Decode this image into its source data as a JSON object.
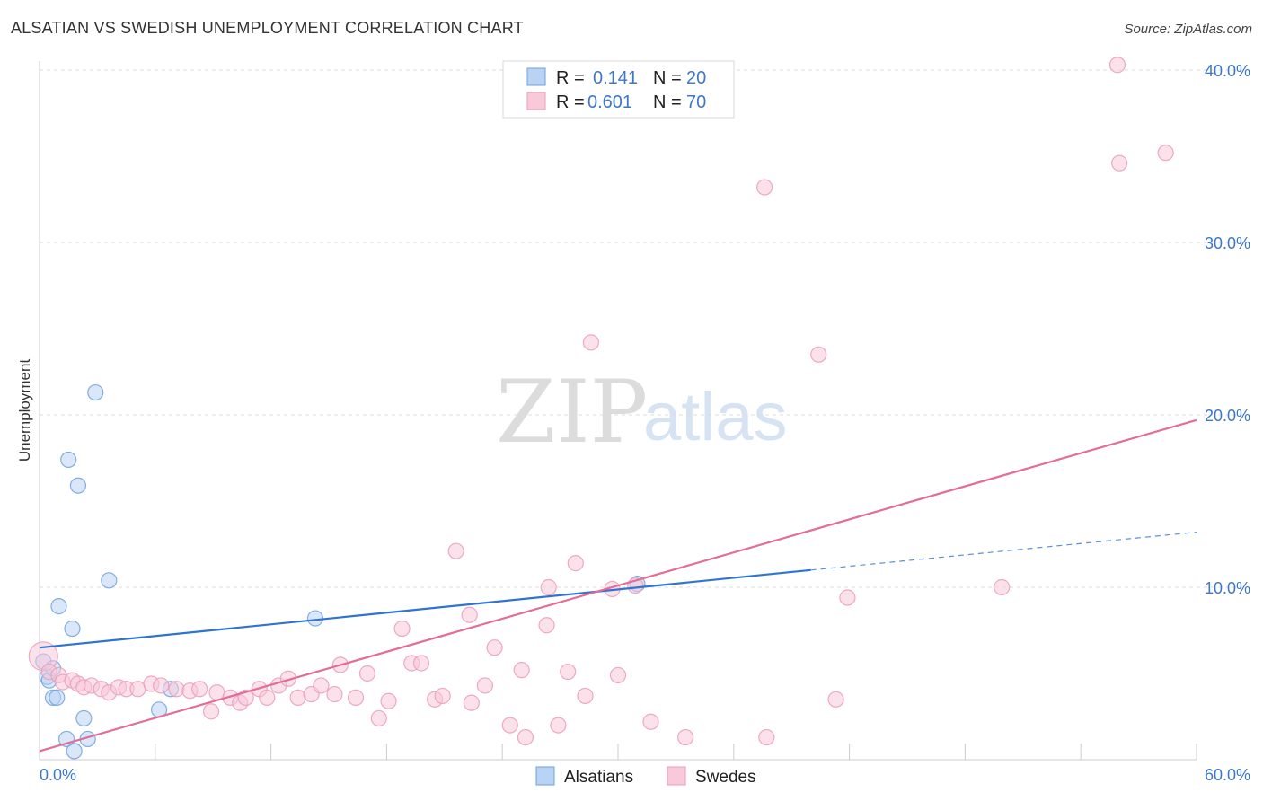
{
  "title": "ALSATIAN VS SWEDISH UNEMPLOYMENT CORRELATION CHART",
  "source": "Source: ZipAtlas.com",
  "watermark": {
    "zip": "ZIP",
    "atlas": "atlas"
  },
  "colors": {
    "blue": "#6fa1de",
    "blue_fill": "#b9d3f4",
    "blue_line": "#2f74cf",
    "pink": "#ec9bb6",
    "pink_fill": "#f8c9d8",
    "pink_line": "#e36d97",
    "tick_text": "#3d78c8",
    "grid": "#dddddd"
  },
  "legend_stats": [
    {
      "r_label": "R =",
      "r_value": "0.141",
      "n_label": "N =",
      "n_value": "20",
      "color_key": "blue"
    },
    {
      "r_label": "R =",
      "r_value": "0.601",
      "n_label": "N =",
      "n_value": "70",
      "color_key": "pink"
    }
  ],
  "chart_data": {
    "type": "scatter",
    "title": "ALSATIAN VS SWEDISH UNEMPLOYMENT CORRELATION CHART",
    "xlabel": "",
    "ylabel": "Unemployment",
    "xlim": [
      0,
      60
    ],
    "ylim": [
      0,
      40
    ],
    "x_tick_labels": [
      "0.0%",
      "60.0%"
    ],
    "y_ticks": [
      10,
      20,
      30,
      40
    ],
    "y_tick_labels": [
      "10.0%",
      "20.0%",
      "30.0%",
      "40.0%"
    ],
    "grid": "horizontal dashed",
    "legend_position": "top-center and bottom-center",
    "series": [
      {
        "name": "Alsatians",
        "color": "#6fa1de",
        "r": 0.141,
        "n": 20,
        "points": [
          [
            0.2,
            5.7
          ],
          [
            0.4,
            4.8
          ],
          [
            0.5,
            4.6
          ],
          [
            0.7,
            5.3
          ],
          [
            0.7,
            3.6
          ],
          [
            0.9,
            3.6
          ],
          [
            1.0,
            8.9
          ],
          [
            1.4,
            1.2
          ],
          [
            1.5,
            17.4
          ],
          [
            1.7,
            7.6
          ],
          [
            1.8,
            0.5
          ],
          [
            2.0,
            15.9
          ],
          [
            2.3,
            2.4
          ],
          [
            2.5,
            1.2
          ],
          [
            2.9,
            21.3
          ],
          [
            3.6,
            10.4
          ],
          [
            6.2,
            2.9
          ],
          [
            6.8,
            4.1
          ],
          [
            14.3,
            8.2
          ],
          [
            31.0,
            10.2
          ]
        ],
        "trend": {
          "x_start": 0,
          "y_start": 6.5,
          "x_solid_end": 40,
          "y_solid_end": 11.0,
          "x_end": 60,
          "y_end": 13.2
        }
      },
      {
        "name": "Swedes",
        "color": "#ec9bb6",
        "r": 0.601,
        "n": 70,
        "points": [
          [
            0.2,
            6.0
          ],
          [
            0.5,
            5.1
          ],
          [
            1.0,
            4.9
          ],
          [
            1.2,
            4.5
          ],
          [
            1.7,
            4.6
          ],
          [
            2.0,
            4.4
          ],
          [
            2.3,
            4.2
          ],
          [
            2.7,
            4.3
          ],
          [
            3.2,
            4.1
          ],
          [
            3.6,
            3.9
          ],
          [
            4.1,
            4.2
          ],
          [
            4.5,
            4.1
          ],
          [
            5.1,
            4.1
          ],
          [
            5.8,
            4.4
          ],
          [
            6.3,
            4.3
          ],
          [
            7.1,
            4.1
          ],
          [
            7.8,
            4.0
          ],
          [
            8.3,
            4.1
          ],
          [
            8.9,
            2.8
          ],
          [
            9.2,
            3.9
          ],
          [
            9.9,
            3.6
          ],
          [
            10.4,
            3.3
          ],
          [
            10.7,
            3.6
          ],
          [
            11.4,
            4.1
          ],
          [
            11.8,
            3.6
          ],
          [
            12.4,
            4.3
          ],
          [
            12.9,
            4.7
          ],
          [
            13.4,
            3.6
          ],
          [
            14.1,
            3.8
          ],
          [
            14.6,
            4.3
          ],
          [
            15.3,
            3.8
          ],
          [
            15.6,
            5.5
          ],
          [
            16.4,
            3.6
          ],
          [
            17.0,
            5.0
          ],
          [
            17.6,
            2.4
          ],
          [
            18.1,
            3.4
          ],
          [
            18.8,
            7.6
          ],
          [
            19.3,
            5.6
          ],
          [
            19.8,
            5.6
          ],
          [
            20.5,
            3.5
          ],
          [
            20.9,
            3.7
          ],
          [
            21.6,
            12.1
          ],
          [
            22.3,
            8.4
          ],
          [
            22.4,
            3.3
          ],
          [
            23.1,
            4.3
          ],
          [
            23.6,
            6.5
          ],
          [
            24.4,
            2.0
          ],
          [
            25.0,
            5.2
          ],
          [
            25.2,
            1.3
          ],
          [
            26.3,
            7.8
          ],
          [
            26.4,
            10.0
          ],
          [
            26.9,
            2.0
          ],
          [
            27.4,
            5.1
          ],
          [
            27.8,
            11.4
          ],
          [
            28.3,
            3.7
          ],
          [
            28.6,
            24.2
          ],
          [
            29.7,
            9.9
          ],
          [
            30.0,
            4.9
          ],
          [
            30.9,
            10.1
          ],
          [
            31.7,
            2.2
          ],
          [
            33.5,
            1.3
          ],
          [
            37.6,
            33.2
          ],
          [
            37.7,
            1.3
          ],
          [
            40.4,
            23.5
          ],
          [
            41.3,
            3.5
          ],
          [
            41.9,
            9.4
          ],
          [
            49.9,
            10.0
          ],
          [
            56.0,
            34.6
          ],
          [
            58.4,
            35.2
          ],
          [
            55.9,
            40.3
          ]
        ],
        "trend": {
          "x_start": 0,
          "y_start": 0.5,
          "x_end": 60,
          "y_end": 19.7
        }
      }
    ]
  },
  "bottom_legend": [
    {
      "label": "Alsatians",
      "color_key": "blue"
    },
    {
      "label": "Swedes",
      "color_key": "pink"
    }
  ]
}
